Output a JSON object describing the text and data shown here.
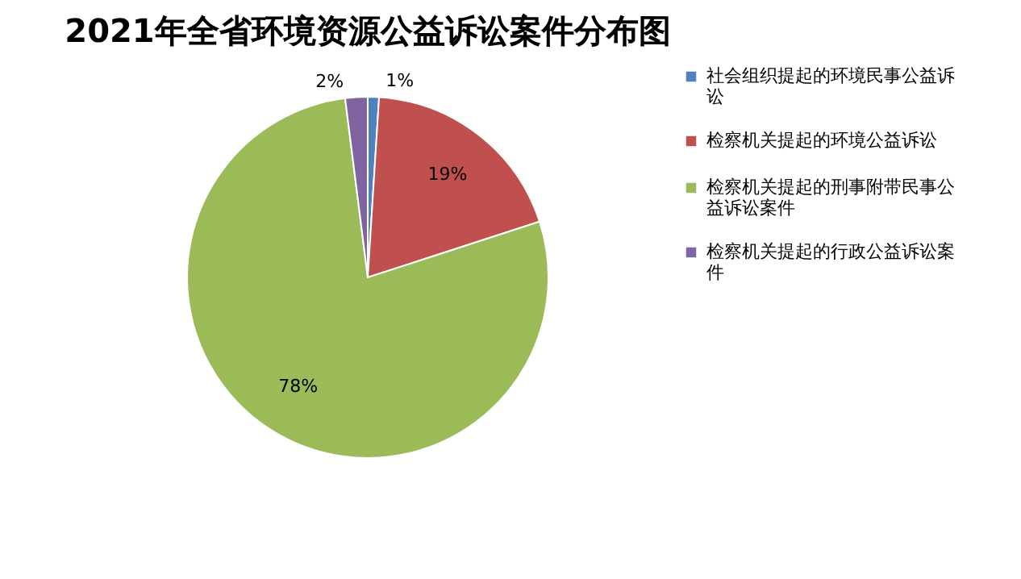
{
  "chart_data": {
    "type": "pie",
    "title": "2021年全省环境资源公益诉讼案件分布图",
    "categories": [
      "社会组织提起的环境民事公益诉讼",
      "检察机关提起的环境公益诉讼",
      "检察机关提起的刑事附带民事公益诉讼案件",
      "检察机关提起的行政公益诉讼案件"
    ],
    "values": [
      1,
      19,
      78,
      2
    ],
    "colors": [
      "#4f81bd",
      "#c0504d",
      "#9bbb59",
      "#8064a2"
    ],
    "value_labels": [
      "1%",
      "19%",
      "78%",
      "2%"
    ],
    "legend": "right"
  }
}
